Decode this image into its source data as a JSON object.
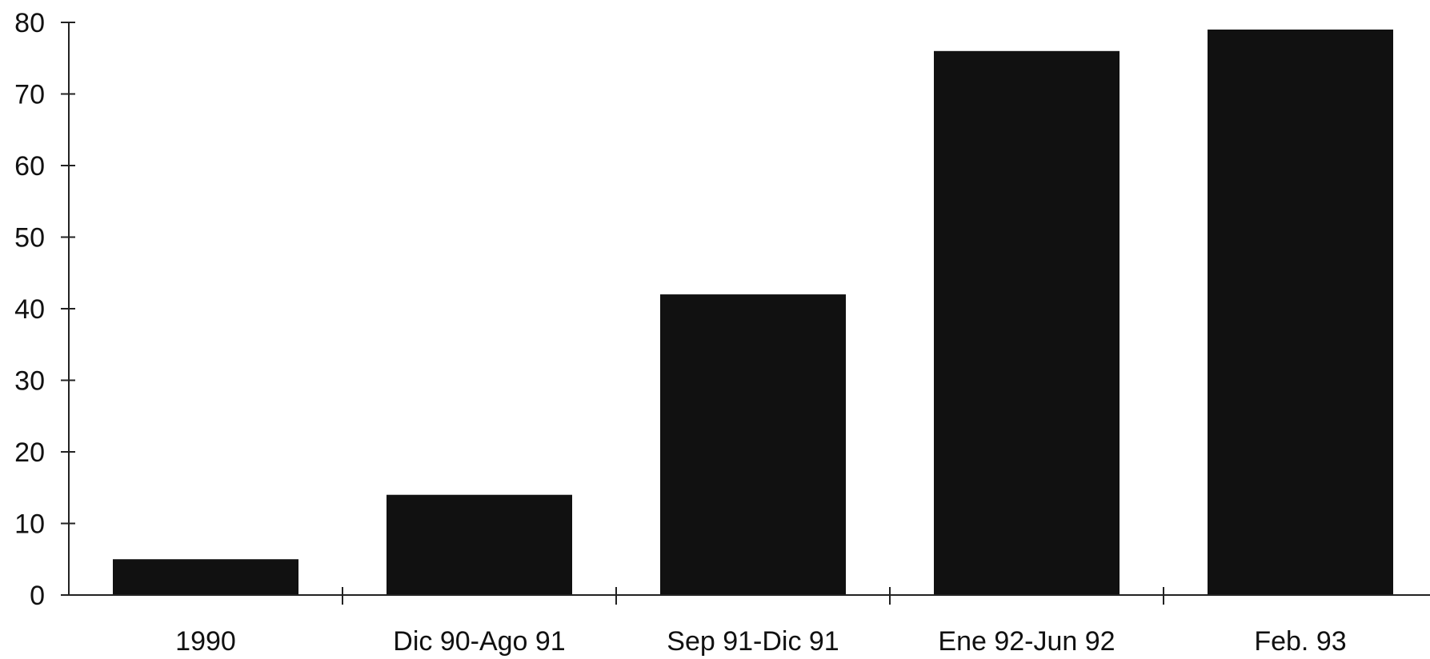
{
  "chart_data": {
    "type": "bar",
    "title": "",
    "xlabel": "",
    "ylabel": "",
    "categories": [
      "1990",
      "Dic 90-Ago 91",
      "Sep 91-Dic 91",
      "Ene 92-Jun 92",
      "Feb. 93"
    ],
    "values": [
      5,
      14,
      42,
      76,
      79
    ],
    "ylim": [
      0,
      80
    ],
    "yticks": [
      "0",
      "10",
      "20",
      "30",
      "40",
      "50",
      "60",
      "70",
      "80"
    ],
    "grid": false,
    "legend": "none",
    "colors": {
      "bar": "#111111",
      "axis": "#222222",
      "text": "#111111",
      "background": "#ffffff"
    }
  }
}
